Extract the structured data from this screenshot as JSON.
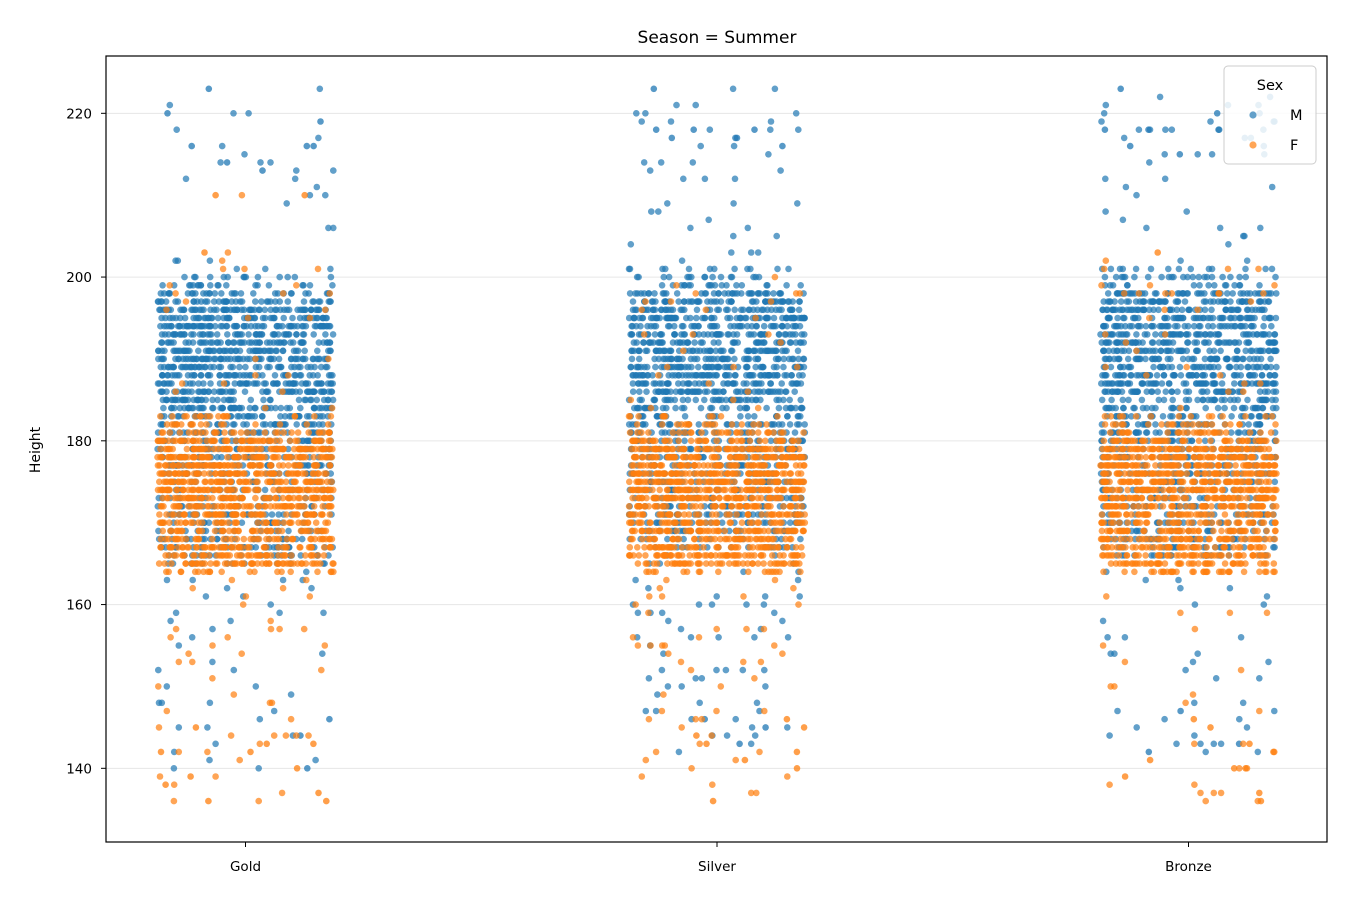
{
  "chart_data": {
    "type": "scatter",
    "subtype": "strip-plot (jittered categorical scatter)",
    "title": "Season = Summer",
    "xlabel": "",
    "ylabel": "Height",
    "categories": [
      "Gold",
      "Silver",
      "Bronze"
    ],
    "ylim": [
      131,
      227
    ],
    "yticks": [
      140,
      160,
      180,
      200,
      220
    ],
    "grid": "horizontal",
    "legend": {
      "title": "Sex",
      "placement": "top-right"
    },
    "series": [
      {
        "name": "M",
        "color": "#1f77b4",
        "distribution": {
          "Gold": {
            "min": 140,
            "q_low": 165,
            "median": 185,
            "q_high": 197,
            "max": 223
          },
          "Silver": {
            "min": 142,
            "q_low": 167,
            "median": 186,
            "q_high": 198,
            "max": 223
          },
          "Bronze": {
            "min": 142,
            "q_low": 166,
            "median": 186,
            "q_high": 198,
            "max": 223
          }
        },
        "outliers": {
          "Gold": [
            219,
            220,
            216,
            216,
            213,
            214,
            223,
            216,
            140,
            144,
            146
          ],
          "Silver": [
            223,
            218,
            218,
            217,
            216,
            218,
            217,
            217,
            143,
            145,
            146
          ],
          "Bronze": [
            223,
            222,
            220,
            220,
            218,
            218,
            217,
            216,
            215,
            216,
            143,
            142,
            147
          ]
        }
      },
      {
        "name": "F",
        "color": "#ff7f0e",
        "distribution": {
          "Gold": {
            "min": 136,
            "q_low": 164,
            "median": 172,
            "q_high": 180,
            "max": 210
          },
          "Silver": {
            "min": 136,
            "q_low": 164,
            "median": 172,
            "q_high": 180,
            "max": 200
          },
          "Bronze": {
            "min": 136,
            "q_low": 164,
            "median": 172,
            "q_high": 180,
            "max": 203
          }
        },
        "outliers": {
          "Gold": [
            136,
            136,
            137,
            138,
            139,
            140,
            142,
            142,
            143,
            143,
            145,
            210,
            210,
            203
          ],
          "Silver": [
            136,
            140,
            141,
            142,
            143,
            144,
            145,
            146
          ],
          "Bronze": [
            136,
            137,
            139,
            140,
            140,
            141,
            142,
            143,
            145,
            146,
            203
          ]
        }
      }
    ]
  }
}
